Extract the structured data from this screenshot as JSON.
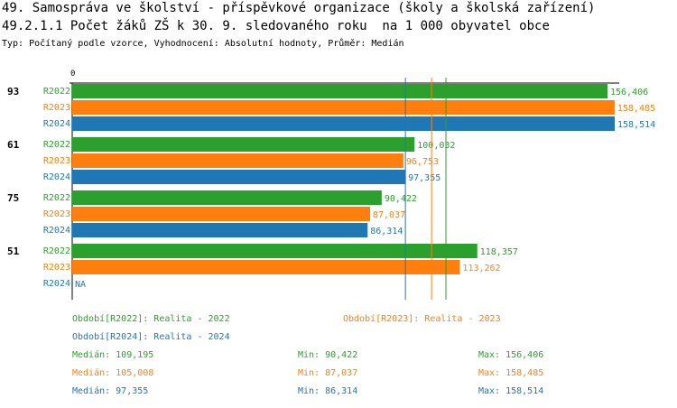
{
  "title": "49. Samospráva ve školství - příspěvkové organizace (školy a školská zařízení)",
  "subtitle": "49.2.1.1 Počet žáků ZŠ k 30. 9. sledovaného roku  na 1 000 obyvatel obce",
  "type_line": "Typ: Počítaný podle vzorce, Vyhodnocení: Absolutní hodnoty, Průměr: Medián",
  "chart_data": {
    "type": "bar",
    "orientation": "horizontal",
    "xlim": [
      0,
      160
    ],
    "axis_tick_label": "0",
    "categories": [
      "93",
      "61",
      "75",
      "51"
    ],
    "series": [
      {
        "name": "R2022",
        "color": "#2ca02c",
        "values": [
          156.406,
          100.032,
          90.422,
          118.357
        ],
        "labels": [
          "156,406",
          "100,032",
          "90,422",
          "118,357"
        ]
      },
      {
        "name": "R2023",
        "color": "#ff7f0e",
        "values": [
          158.485,
          96.753,
          87.037,
          113.262
        ],
        "labels": [
          "158,485",
          "96,753",
          "87,037",
          "113,262"
        ]
      },
      {
        "name": "R2024",
        "color": "#1f77b4",
        "values": [
          158.514,
          97.355,
          86.314,
          null
        ],
        "labels": [
          "158,514",
          "97,355",
          "86,314",
          "NA"
        ]
      }
    ],
    "median_lines": [
      {
        "series": "R2022",
        "value": 109.195
      },
      {
        "series": "R2023",
        "value": 105.008
      },
      {
        "series": "R2024",
        "value": 97.355
      }
    ]
  },
  "legend": [
    {
      "text": "Období[R2022]: Realita - 2022",
      "color": "#2ca02c"
    },
    {
      "text": "Období[R2023]: Realita - 2023",
      "color": "#ff7f0e"
    },
    {
      "text": "Období[R2024]: Realita - 2024",
      "color": "#1f77b4"
    }
  ],
  "stats": [
    {
      "median": "Medián: 109,195",
      "min": "Min: 90,422",
      "max": "Max: 156,406",
      "color": "#2ca02c"
    },
    {
      "median": "Medián: 105,008",
      "min": "Min: 87,037",
      "max": "Max: 158,485",
      "color": "#ff7f0e"
    },
    {
      "median": "Medián: 97,355",
      "min": "Min: 86,314",
      "max": "Max: 158,514",
      "color": "#1f77b4"
    }
  ]
}
